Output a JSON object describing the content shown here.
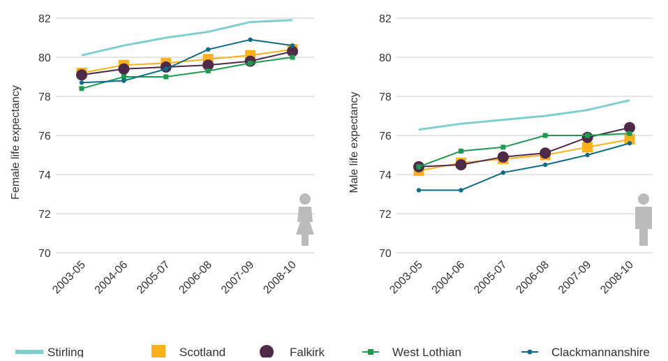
{
  "colors": {
    "Stirling": "#7fcfd0",
    "Scotland": "#fbb01c",
    "Falkirk": "#4e2a48",
    "West Lothian": "#1e9a50",
    "Clackmannanshire": "#0e6c84",
    "grid": "#cccccc",
    "person_icon": "#bbbbbb"
  },
  "chart_data": [
    {
      "type": "line",
      "title": "",
      "xlabel": "",
      "ylabel": "Female life expectancy",
      "ylim": [
        70,
        82
      ],
      "yticks": [
        70,
        72,
        74,
        76,
        78,
        80,
        82
      ],
      "grid": true,
      "icon": "female-person-icon",
      "categories": [
        "2003-05",
        "2004-06",
        "2005-07",
        "2006-08",
        "2007-09",
        "2008-10"
      ],
      "series": [
        {
          "name": "Stirling",
          "marker": "none",
          "values": [
            80.1,
            80.6,
            81.0,
            81.3,
            81.8,
            81.9
          ]
        },
        {
          "name": "Scotland",
          "marker": "square",
          "values": [
            79.2,
            79.6,
            79.7,
            79.9,
            80.1,
            80.4
          ]
        },
        {
          "name": "Falkirk",
          "marker": "circle",
          "values": [
            79.1,
            79.4,
            79.5,
            79.6,
            79.8,
            80.3
          ]
        },
        {
          "name": "West Lothian",
          "marker": "small-square",
          "values": [
            78.4,
            79.0,
            79.0,
            79.3,
            79.7,
            80.0
          ]
        },
        {
          "name": "Clackmannanshire",
          "marker": "dot",
          "values": [
            78.7,
            78.8,
            79.4,
            80.4,
            80.9,
            80.6
          ]
        }
      ]
    },
    {
      "type": "line",
      "title": "",
      "xlabel": "",
      "ylabel": "Male life expectancy",
      "ylim": [
        70,
        82
      ],
      "yticks": [
        70,
        72,
        74,
        76,
        78,
        80,
        82
      ],
      "grid": true,
      "icon": "male-person-icon",
      "categories": [
        "2003-05",
        "2004-06",
        "2005-07",
        "2006-08",
        "2007-09",
        "2008-10"
      ],
      "series": [
        {
          "name": "Stirling",
          "marker": "none",
          "values": [
            76.3,
            76.6,
            76.8,
            77.0,
            77.3,
            77.8
          ]
        },
        {
          "name": "Scotland",
          "marker": "square",
          "values": [
            74.2,
            74.6,
            74.8,
            75.0,
            75.4,
            75.8
          ]
        },
        {
          "name": "Falkirk",
          "marker": "circle",
          "values": [
            74.4,
            74.5,
            74.9,
            75.1,
            75.9,
            76.4
          ]
        },
        {
          "name": "West Lothian",
          "marker": "small-square",
          "values": [
            74.4,
            75.2,
            75.4,
            76.0,
            76.0,
            76.1
          ]
        },
        {
          "name": "Clackmannanshire",
          "marker": "dot",
          "values": [
            73.2,
            73.2,
            74.1,
            74.5,
            75.0,
            75.6
          ]
        }
      ]
    }
  ],
  "legend": {
    "placement": "bottom",
    "items": [
      {
        "label": "Stirling",
        "marker": "line"
      },
      {
        "label": "Scotland",
        "marker": "square"
      },
      {
        "label": "Falkirk",
        "marker": "circle"
      },
      {
        "label": "West Lothian",
        "marker": "line-small-square"
      },
      {
        "label": "Clackmannanshire",
        "marker": "line-dot"
      }
    ]
  }
}
